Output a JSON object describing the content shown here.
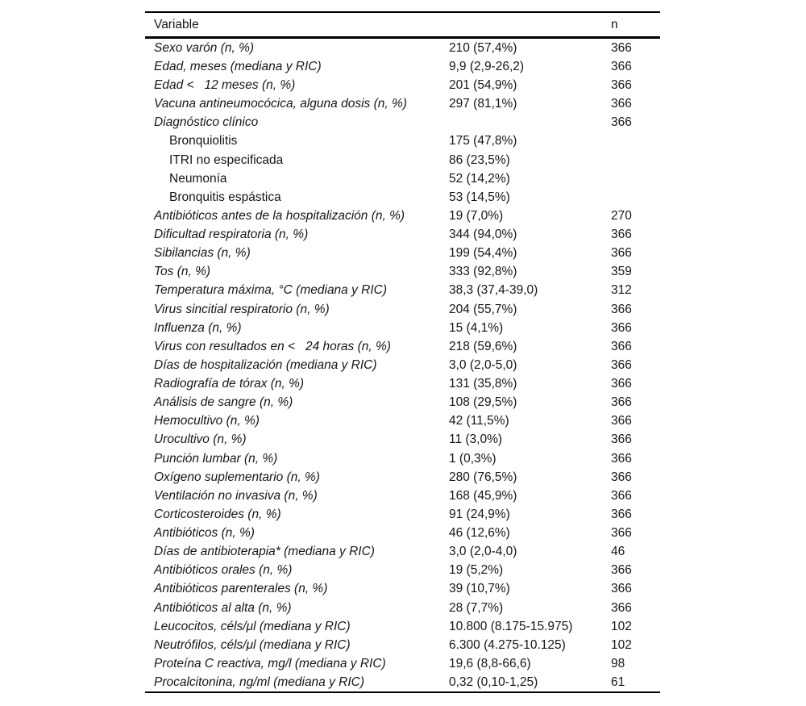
{
  "table": {
    "header": {
      "variable": "Variable",
      "n": "n"
    },
    "rows": [
      {
        "label": "Sexo varón (n, %)",
        "value": "210 (57,4%)",
        "n": "366"
      },
      {
        "label": "Edad, meses (mediana y RIC)",
        "value": "9,9 (2,9-26,2)",
        "n": "366"
      },
      {
        "label": "Edad <   12 meses (n, %)",
        "value": "201 (54,9%)",
        "n": "366"
      },
      {
        "label": "Vacuna antineumocócica, alguna dosis (n, %)",
        "value": "297 (81,1%)",
        "n": "366"
      },
      {
        "label": "Diagnóstico clínico",
        "value": "",
        "n": "366"
      },
      {
        "label": "Bronquiolitis",
        "value": "175 (47,8%)",
        "n": "",
        "sub": true
      },
      {
        "label": "ITRI no especificada",
        "value": "86 (23,5%)",
        "n": "",
        "sub": true
      },
      {
        "label": "Neumonía",
        "value": "52 (14,2%)",
        "n": "",
        "sub": true
      },
      {
        "label": "Bronquitis espástica",
        "value": "53 (14,5%)",
        "n": "",
        "sub": true
      },
      {
        "label": "Antibióticos antes de la hospitalización (n, %)",
        "value": "19 (7,0%)",
        "n": "270"
      },
      {
        "label": "Dificultad respiratoria (n, %)",
        "value": "344 (94,0%)",
        "n": "366"
      },
      {
        "label": "Sibilancias (n, %)",
        "value": "199 (54,4%)",
        "n": "366"
      },
      {
        "label": "Tos (n, %)",
        "value": "333 (92,8%)",
        "n": "359"
      },
      {
        "label": "Temperatura máxima, °C (mediana y RIC)",
        "value": "38,3 (37,4-39,0)",
        "n": "312"
      },
      {
        "label": "Virus sincitial respiratorio (n, %)",
        "value": "204 (55,7%)",
        "n": "366"
      },
      {
        "label": "Influenza (n, %)",
        "value": "15 (4,1%)",
        "n": "366"
      },
      {
        "label": "Virus con resultados en <   24 horas (n, %)",
        "value": "218 (59,6%)",
        "n": "366"
      },
      {
        "label": "Días de hospitalización (mediana y RIC)",
        "value": "3,0 (2,0-5,0)",
        "n": "366"
      },
      {
        "label": "Radiografía de tórax (n, %)",
        "value": "131 (35,8%)",
        "n": "366"
      },
      {
        "label": "Análisis de sangre (n, %)",
        "value": "108 (29,5%)",
        "n": "366"
      },
      {
        "label": "Hemocultivo (n, %)",
        "value": "42 (11,5%)",
        "n": "366"
      },
      {
        "label": "Urocultivo (n, %)",
        "value": "11 (3,0%)",
        "n": "366"
      },
      {
        "label": "Punción lumbar (n, %)",
        "value": "1 (0,3%)",
        "n": "366"
      },
      {
        "label": "Oxígeno suplementario (n, %)",
        "value": "280 (76,5%)",
        "n": "366"
      },
      {
        "label": "Ventilación no invasiva (n, %)",
        "value": "168 (45,9%)",
        "n": "366"
      },
      {
        "label": "Corticosteroides (n, %)",
        "value": "91 (24,9%)",
        "n": "366"
      },
      {
        "label": "Antibióticos (n, %)",
        "value": "46 (12,6%)",
        "n": "366"
      },
      {
        "label": "Días de antibioterapia* (mediana y RIC)",
        "value": "3,0 (2,0-4,0)",
        "n": "46"
      },
      {
        "label": "Antibióticos orales (n, %)",
        "value": "19 (5,2%)",
        "n": "366"
      },
      {
        "label": "Antibióticos parenterales (n, %)",
        "value": "39 (10,7%)",
        "n": "366"
      },
      {
        "label": "Antibióticos al alta (n, %)",
        "value": "28 (7,7%)",
        "n": "366"
      },
      {
        "label": "Leucocitos, céls/μl (mediana y RIC)",
        "value": "10.800 (8.175-15.975)",
        "n": "102"
      },
      {
        "label": "Neutrófilos, céls/μl (mediana y RIC)",
        "value": "6.300 (4.275-10.125)",
        "n": "102"
      },
      {
        "label": "Proteína C reactiva, mg/l (mediana y RIC)",
        "value": "19,6 (8,8-66,6)",
        "n": "98"
      },
      {
        "label": "Procalcitonina, ng/ml (mediana y RIC)",
        "value": "0,32 (0,10-1,25)",
        "n": "61"
      }
    ]
  }
}
